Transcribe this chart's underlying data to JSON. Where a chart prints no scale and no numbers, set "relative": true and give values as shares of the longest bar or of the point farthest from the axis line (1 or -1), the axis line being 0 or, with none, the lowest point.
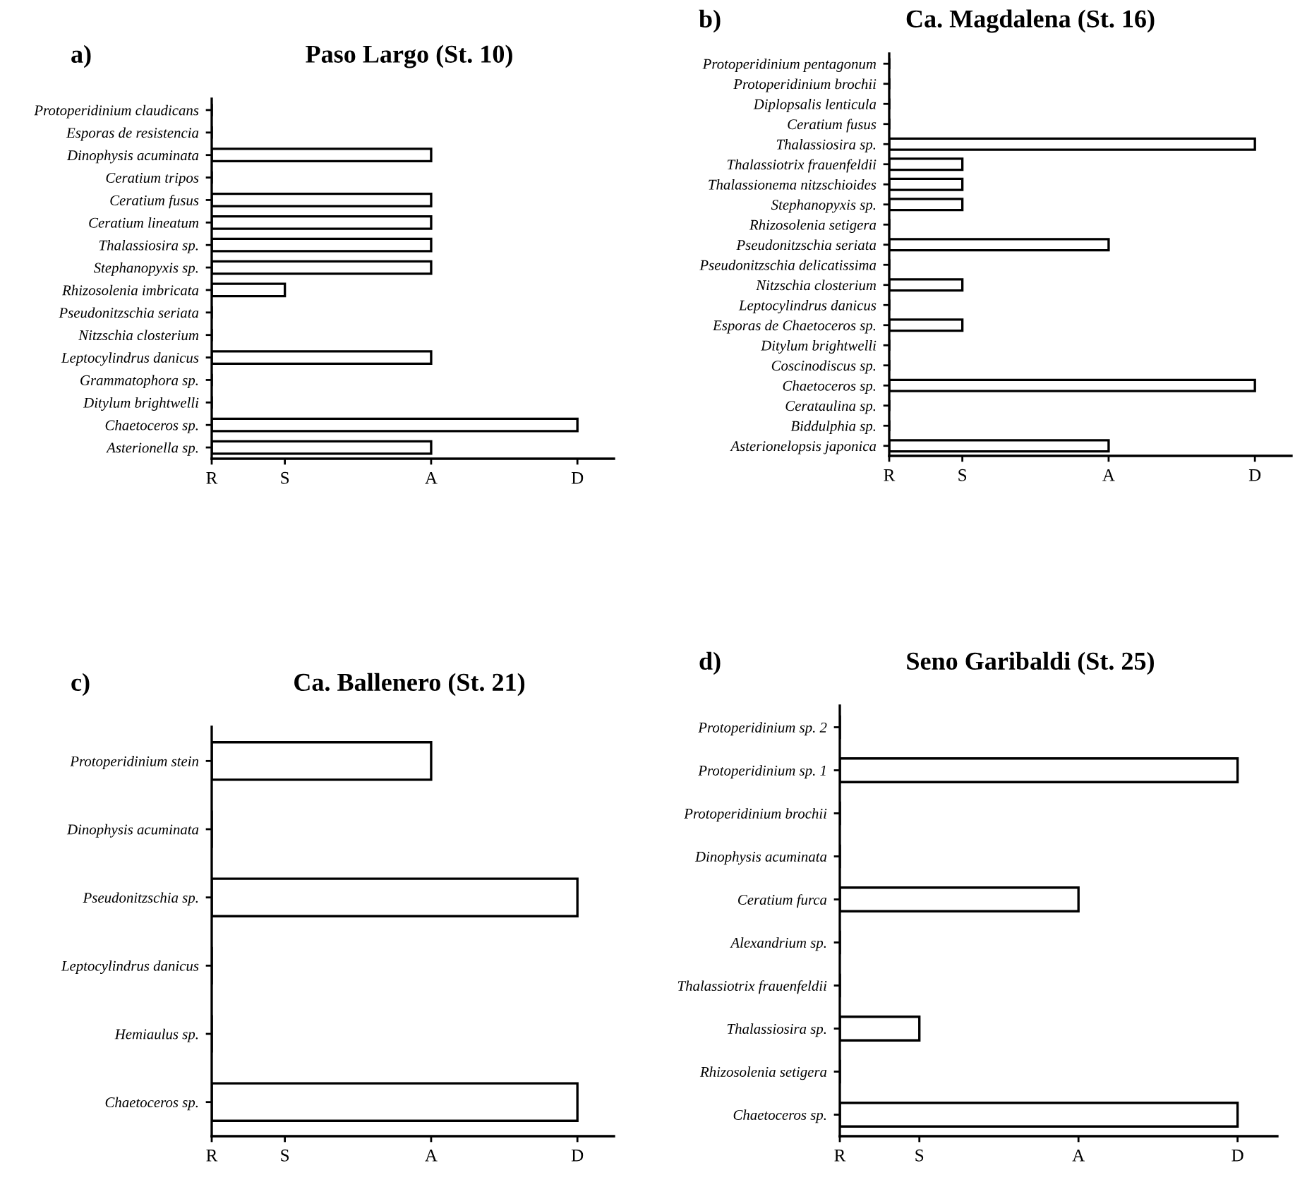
{
  "chart_data": [
    {
      "type": "bar",
      "orientation": "horizontal",
      "relative": true,
      "title": "Paso Largo (St. 10)",
      "annotations": [
        "a)",
        {
          "text": "R",
          "x": 0
        },
        {
          "text": "S",
          "x": 0.2
        },
        {
          "text": "A",
          "x": 0.6
        },
        {
          "text": "D",
          "x": 1
        }
      ],
      "categories": [
        "Protoperidinium claudicans",
        "Esporas de resistencia",
        "Dinophysis acuminata",
        "Ceratium tripos",
        "Ceratium fusus",
        "Ceratium lineatum",
        "Thalassiosira sp.",
        "Stephanopyxis sp.",
        "Rhizosolenia imbricata",
        "Pseudonitzschia seriata",
        "Nitzschia closterium",
        "Leptocylindrus danicus",
        "Grammatophora sp.",
        "Ditylum brightwelli",
        "Chaetoceros sp.",
        "Asterionella sp."
      ],
      "values": [
        0,
        0,
        0.6,
        0,
        0.6,
        0.6,
        0.6,
        0.6,
        0.2,
        0,
        0,
        0.6,
        0,
        0,
        1,
        0.6
      ],
      "color": "#ffffff"
    },
    {
      "type": "bar",
      "orientation": "horizontal",
      "relative": true,
      "title": "Ca. Magdalena (St. 16)",
      "annotations": [
        "b)",
        {
          "text": "R",
          "x": 0
        },
        {
          "text": "S",
          "x": 0.2
        },
        {
          "text": "A",
          "x": 0.6
        },
        {
          "text": "D",
          "x": 1
        }
      ],
      "categories": [
        "Protoperidinium pentagonum",
        "Protoperidinium brochii",
        "Diplopsalis lenticula",
        "Ceratium fusus",
        "Thalassiosira sp.",
        "Thalassiotrix frauenfeldii",
        "Thalassionema nitzschioides",
        "Stephanopyxis sp.",
        "Rhizosolenia setigera",
        "Pseudonitzschia seriata",
        "Pseudonitzschia delicatissima",
        "Nitzschia closterium",
        "Leptocylindrus danicus",
        "Esporas de Chaetoceros sp.",
        "Ditylum brightwelli",
        "Coscinodiscus sp.",
        "Chaetoceros sp.",
        "Cerataulina sp.",
        "Biddulphia sp.",
        "Asterionelopsis japonica"
      ],
      "values": [
        0,
        0,
        0,
        0,
        1,
        0.2,
        0.2,
        0.2,
        0,
        0.6,
        0,
        0.2,
        0,
        0.2,
        0,
        0,
        1,
        0,
        0,
        0.6
      ],
      "color": "#ffffff"
    },
    {
      "type": "bar",
      "orientation": "horizontal",
      "relative": true,
      "title": "Ca. Ballenero (St. 21)",
      "annotations": [
        "c)",
        {
          "text": "R",
          "x": 0
        },
        "S",
        {
          "text": "A",
          "x": 0.6
        },
        {
          "text": "D",
          "x": 1
        }
      ],
      "categories": [
        "Protoperidinium stein",
        "Dinophysis acuminata",
        "Pseudonitzschia sp.",
        "Leptocylindrus danicus",
        "Hemiaulus sp.",
        "Chaetoceros sp."
      ],
      "values": [
        0.6,
        0,
        1,
        0,
        0,
        1
      ],
      "color": "#ffffff"
    },
    {
      "type": "bar",
      "orientation": "horizontal",
      "relative": true,
      "title": "Seno Garibaldi (St. 25)",
      "annotations": [
        "d)",
        {
          "text": "R",
          "x": 0
        },
        {
          "text": "S",
          "x": 0.2
        },
        {
          "text": "A",
          "x": 0.6
        },
        {
          "text": "D",
          "x": 1
        }
      ],
      "categories": [
        "Protoperidinium sp. 2",
        "Protoperidinium sp. 1",
        "Protoperidinium brochii",
        "Dinophysis acuminata",
        "Ceratium furca",
        "Alexandrium sp.",
        "Thalassiotrix frauenfeldii",
        "Thalassiosira sp.",
        "Rhizosolenia setigera",
        "Chaetoceros sp."
      ],
      "values": [
        0,
        1,
        0,
        0,
        0.6,
        0,
        0,
        0.2,
        0,
        1
      ],
      "color": "#ffffff"
    }
  ]
}
